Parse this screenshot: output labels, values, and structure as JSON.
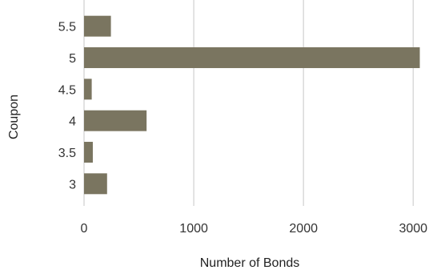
{
  "chart_data": {
    "type": "bar",
    "orientation": "horizontal",
    "categories": [
      "3",
      "3.5",
      "4",
      "4.5",
      "5",
      "5.5"
    ],
    "values": [
      210,
      80,
      570,
      70,
      3060,
      245
    ],
    "xlabel": "Number of Bonds",
    "ylabel": "Coupon",
    "xlim": [
      0,
      3100
    ],
    "xticks": [
      "0",
      "1000",
      "2000",
      "3000"
    ],
    "grid": "vertical",
    "legend": "none",
    "bar_color": "#7a7560"
  }
}
